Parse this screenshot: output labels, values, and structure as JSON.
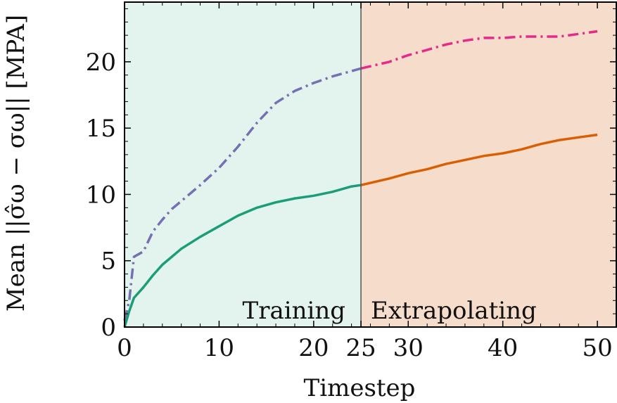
{
  "chart_data": {
    "type": "line",
    "xlabel": "Timestep",
    "ylabel": "Mean ||σ̂ω − σω|| [MPA]",
    "xlim": [
      0,
      52
    ],
    "ylim": [
      0,
      24.5
    ],
    "xticks": [
      0,
      10,
      20,
      25,
      30,
      40,
      50
    ],
    "yticks": [
      0,
      5,
      10,
      15,
      20
    ],
    "grid": false,
    "regions": [
      {
        "label": "Training",
        "x_start": 0,
        "x_end": 25,
        "color": "#e3f3ee"
      },
      {
        "label": "Extrapolating",
        "x_start": 25,
        "x_end": 52,
        "color": "#f6ddcb"
      }
    ],
    "divider_x": 25,
    "series": [
      {
        "style": "dashdot",
        "segments": [
          {
            "color": "#7570b3",
            "x": [
              0,
              0.5,
              1,
              2,
              3,
              4,
              5,
              6,
              8,
              10,
              12,
              14,
              16,
              18,
              20,
              22,
              24,
              25
            ],
            "y": [
              0.5,
              2.0,
              5.3,
              5.7,
              7.2,
              8.1,
              8.9,
              9.5,
              10.7,
              12.0,
              13.6,
              15.4,
              16.9,
              17.8,
              18.4,
              18.9,
              19.3,
              19.5
            ]
          },
          {
            "color": "#e7298a",
            "x": [
              25,
              28,
              30,
              32,
              34,
              36,
              38,
              40,
              42,
              44,
              46,
              48,
              50
            ],
            "y": [
              19.5,
              20.0,
              20.5,
              20.9,
              21.3,
              21.6,
              21.8,
              21.8,
              21.9,
              21.9,
              21.9,
              22.1,
              22.3
            ]
          }
        ]
      },
      {
        "style": "solid",
        "segments": [
          {
            "color": "#1b9e77",
            "x": [
              0,
              0.5,
              1,
              2,
              3,
              4,
              5,
              6,
              8,
              10,
              12,
              14,
              16,
              18,
              20,
              22,
              24,
              25
            ],
            "y": [
              0,
              1.2,
              2.2,
              3.0,
              3.9,
              4.7,
              5.3,
              5.9,
              6.8,
              7.6,
              8.4,
              9.0,
              9.4,
              9.7,
              9.9,
              10.2,
              10.6,
              10.7
            ]
          },
          {
            "color": "#d95f02",
            "x": [
              25,
              28,
              30,
              32,
              34,
              36,
              38,
              40,
              42,
              44,
              46,
              48,
              50
            ],
            "y": [
              10.7,
              11.2,
              11.6,
              11.9,
              12.3,
              12.6,
              12.9,
              13.1,
              13.4,
              13.8,
              14.1,
              14.3,
              14.5
            ]
          }
        ]
      }
    ]
  }
}
